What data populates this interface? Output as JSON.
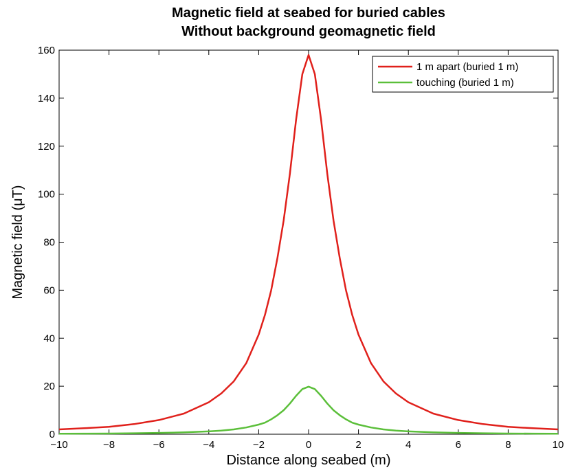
{
  "chart_data": {
    "type": "line",
    "title": [
      "Magnetic field at seabed for buried cables",
      "Without background geomagnetic field"
    ],
    "xlabel": "Distance along seabed (m)",
    "ylabel": "Magnetic field (μT)",
    "xlim": [
      -10,
      10
    ],
    "ylim": [
      0,
      160
    ],
    "xticks": [
      -10,
      -8,
      -6,
      -4,
      -2,
      0,
      2,
      4,
      6,
      8,
      10
    ],
    "xtick_labels": [
      "−10",
      "−8",
      "−6",
      "−4",
      "−2",
      "0",
      "2",
      "4",
      "6",
      "8",
      "10"
    ],
    "yticks": [
      0,
      20,
      40,
      60,
      80,
      100,
      120,
      140,
      160
    ],
    "ytick_labels": [
      "0",
      "20",
      "40",
      "60",
      "80",
      "100",
      "120",
      "140",
      "160"
    ],
    "grid": false,
    "legend_position": "top-right",
    "series": [
      {
        "name": "1 m apart (buried 1 m)",
        "color": "#e0201b",
        "x": [
          -10,
          -9,
          -8,
          -7,
          -6,
          -5,
          -4,
          -3.5,
          -3,
          -2.5,
          -2,
          -1.75,
          -1.5,
          -1.25,
          -1,
          -0.75,
          -0.5,
          -0.25,
          0,
          0.25,
          0.5,
          0.75,
          1,
          1.25,
          1.5,
          1.75,
          2,
          2.5,
          3,
          3.5,
          4,
          5,
          6,
          7,
          8,
          9,
          10
        ],
        "y": [
          2.0,
          2.5,
          3.1,
          4.2,
          5.9,
          8.6,
          13.3,
          17.0,
          22.0,
          29.6,
          41.5,
          49.7,
          60.0,
          73.3,
          89.0,
          108.5,
          131.0,
          150.0,
          158.0,
          150.0,
          131.0,
          108.5,
          89.0,
          73.3,
          60.0,
          49.7,
          41.5,
          29.6,
          22.0,
          17.0,
          13.3,
          8.6,
          5.9,
          4.2,
          3.1,
          2.5,
          2.0
        ]
      },
      {
        "name": "touching (buried 1 m)",
        "color": "#5bbf3a",
        "x": [
          -10,
          -9,
          -8,
          -7,
          -6,
          -5,
          -4,
          -3.5,
          -3,
          -2.5,
          -2,
          -1.75,
          -1.5,
          -1.25,
          -1,
          -0.75,
          -0.5,
          -0.25,
          0,
          0.25,
          0.5,
          0.75,
          1,
          1.25,
          1.5,
          1.75,
          2,
          2.5,
          3,
          3.5,
          4,
          5,
          6,
          7,
          8,
          9,
          10
        ],
        "y": [
          0.2,
          0.25,
          0.3,
          0.4,
          0.55,
          0.77,
          1.18,
          1.5,
          2.0,
          2.8,
          4.0,
          4.8,
          6.2,
          7.9,
          10.0,
          12.8,
          16.0,
          18.8,
          19.8,
          18.8,
          16.0,
          12.8,
          10.0,
          7.9,
          6.2,
          4.8,
          4.0,
          2.8,
          2.0,
          1.5,
          1.18,
          0.77,
          0.55,
          0.4,
          0.3,
          0.25,
          0.2
        ]
      }
    ]
  }
}
